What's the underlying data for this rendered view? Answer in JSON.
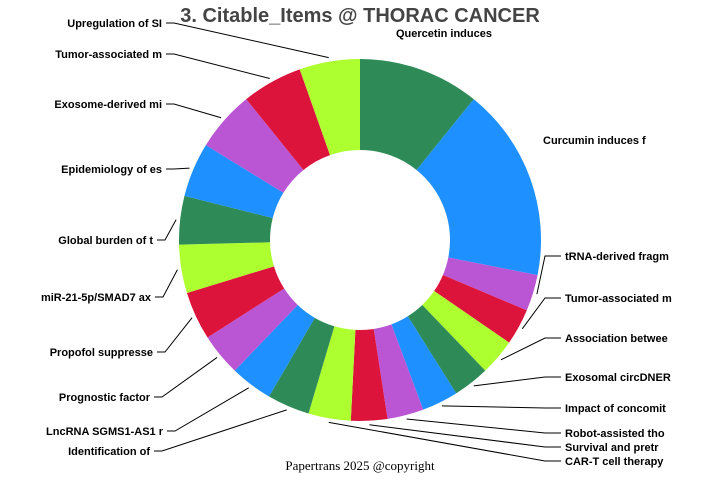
{
  "title": "3. Citable_Items @ THORAC CANCER",
  "footer": "Papertrans 2025 @copyright",
  "colors": {
    "green": "#2e8b57",
    "blue": "#1e90ff",
    "purple": "#ba55d3",
    "red": "#dc143c",
    "lime": "#adff2f"
  },
  "chart_data": {
    "type": "pie",
    "donut": true,
    "start": "top, clockwise",
    "slices": [
      {
        "label": "Quercetin induces",
        "value": 10,
        "color": "#2e8b57"
      },
      {
        "label": "Curcumin induces f",
        "value": 16,
        "color": "#1e90ff"
      },
      {
        "label": "tRNA-derived fragm",
        "value": 3,
        "color": "#ba55d3"
      },
      {
        "label": "Tumor-associated m",
        "value": 3,
        "color": "#dc143c"
      },
      {
        "label": "Association betwee",
        "value": 3,
        "color": "#adff2f"
      },
      {
        "label": "Exosomal circDNER",
        "value": 3,
        "color": "#2e8b57"
      },
      {
        "label": "Impact of concomit",
        "value": 3,
        "color": "#1e90ff"
      },
      {
        "label": "Robot-assisted tho",
        "value": 3,
        "color": "#ba55d3"
      },
      {
        "label": "Survival and pretr",
        "value": 3,
        "color": "#dc143c"
      },
      {
        "label": "CAR-T cell therapy",
        "value": 3.5,
        "color": "#adff2f"
      },
      {
        "label": "Identification of",
        "value": 3.5,
        "color": "#2e8b57"
      },
      {
        "label": "LncRNA SGMS1-AS1 r",
        "value": 3.5,
        "color": "#1e90ff"
      },
      {
        "label": "Prognostic factor",
        "value": 3.5,
        "color": "#ba55d3"
      },
      {
        "label": "Propofol suppresse",
        "value": 4,
        "color": "#dc143c"
      },
      {
        "label": "miR-21-5p/SMAD7 ax",
        "value": 4,
        "color": "#adff2f"
      },
      {
        "label": "Global burden of t",
        "value": 4,
        "color": "#2e8b57"
      },
      {
        "label": "Epidemiology of es",
        "value": 4.5,
        "color": "#1e90ff"
      },
      {
        "label": "Exosome-derived mi",
        "value": 5,
        "color": "#ba55d3"
      },
      {
        "label": "Tumor-associated m",
        "value": 5,
        "color": "#dc143c"
      },
      {
        "label": "Upregulation of SI",
        "value": 5,
        "color": "#adff2f"
      }
    ]
  }
}
